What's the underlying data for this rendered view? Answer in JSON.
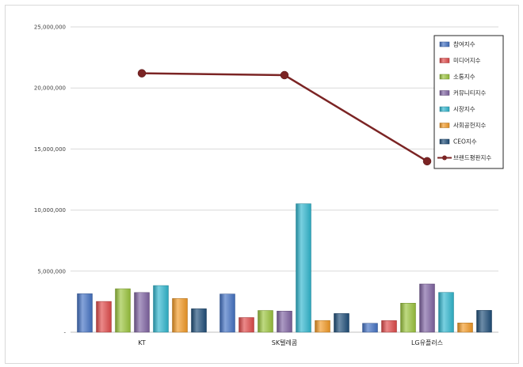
{
  "chart_data": {
    "type": "bar",
    "title": "",
    "xlabel": "",
    "ylabel": "",
    "categories": [
      "KT",
      "SK텔레콤",
      "LG유플러스"
    ],
    "ylim": [
      0,
      25000000
    ],
    "yticks": [
      0,
      5000000,
      10000000,
      15000000,
      20000000,
      25000000
    ],
    "ytick_labels": [
      "-",
      "5,000,000",
      "10,000,000",
      "15,000,000",
      "20,000,000",
      "25,000,000"
    ],
    "grid": true,
    "legend_position": "top-right",
    "series": [
      {
        "name": "참여지수",
        "kind": "bar",
        "color": "#4472c4",
        "values": [
          3150000,
          3130000,
          730000
        ]
      },
      {
        "name": "미디어지수",
        "kind": "bar",
        "color": "#e04a4a",
        "values": [
          2520000,
          1200000,
          950000
        ]
      },
      {
        "name": "소통지수",
        "kind": "bar",
        "color": "#9bc53d",
        "values": [
          3560000,
          1780000,
          2380000
        ]
      },
      {
        "name": "커뮤니티지수",
        "kind": "bar",
        "color": "#8064a2",
        "values": [
          3250000,
          1730000,
          3950000
        ]
      },
      {
        "name": "시장지수",
        "kind": "bar",
        "color": "#31b7cf",
        "values": [
          3820000,
          10520000,
          3260000
        ]
      },
      {
        "name": "사회공헌지수",
        "kind": "bar",
        "color": "#f39a26",
        "values": [
          2760000,
          960000,
          760000
        ]
      },
      {
        "name": "CEO지수",
        "kind": "bar",
        "color": "#1f4e79",
        "values": [
          1920000,
          1530000,
          1790000
        ]
      },
      {
        "name": "브랜드평판지수",
        "kind": "line",
        "color": "#7b2424",
        "values": [
          21200000,
          21050000,
          14000000
        ]
      }
    ]
  }
}
